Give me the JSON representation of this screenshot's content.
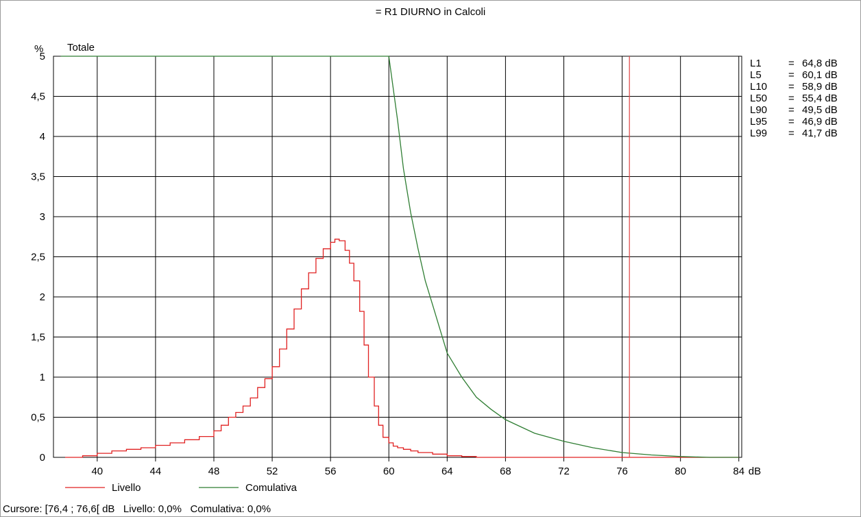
{
  "colors": {
    "livello": "#e02020",
    "comulativa": "#2e7d32",
    "cursor": "#e05050",
    "grid": "#000000",
    "cumulative_top": "#2e7d32"
  },
  "chart_data": {
    "type": "line",
    "title": "= R1 DIURNO in Calcoli",
    "ylabel": "%",
    "series_title": "Totale",
    "xunit": "dB",
    "xlim": [
      37,
      84.2
    ],
    "ylim": [
      0,
      5
    ],
    "x_ticks": [
      "40",
      "44",
      "48",
      "52",
      "56",
      "60",
      "64",
      "68",
      "72",
      "76",
      "80",
      "84"
    ],
    "y_ticks": [
      "0",
      "0,5",
      "1",
      "1,5",
      "2",
      "2,5",
      "3",
      "3,5",
      "4",
      "4,5",
      "5"
    ],
    "grid": true,
    "legend_position": "bottom-left",
    "cursor_x": 76.5,
    "series": [
      {
        "name": "Livello",
        "style": "step",
        "x": [
          37.8,
          39,
          40,
          41,
          42,
          43,
          44,
          45,
          46,
          47,
          48,
          48.5,
          49,
          49.5,
          50,
          50.5,
          51,
          51.5,
          52,
          52.5,
          53,
          53.5,
          54,
          54.5,
          55,
          55.5,
          56,
          56.3,
          56.6,
          57,
          57.3,
          57.6,
          58,
          58.3,
          58.6,
          59,
          59.3,
          59.6,
          60,
          60.3,
          60.6,
          61,
          61.5,
          62,
          63,
          64,
          65,
          66,
          68,
          70,
          72,
          74,
          76,
          80,
          84
        ],
        "y": [
          0.0,
          0.02,
          0.05,
          0.08,
          0.1,
          0.12,
          0.15,
          0.18,
          0.22,
          0.26,
          0.33,
          0.4,
          0.5,
          0.56,
          0.64,
          0.74,
          0.87,
          0.98,
          1.13,
          1.35,
          1.6,
          1.85,
          2.1,
          2.3,
          2.48,
          2.6,
          2.68,
          2.72,
          2.7,
          2.58,
          2.42,
          2.2,
          1.82,
          1.4,
          1.0,
          0.64,
          0.4,
          0.25,
          0.18,
          0.14,
          0.12,
          0.1,
          0.08,
          0.06,
          0.04,
          0.02,
          0.01,
          0.0,
          0.0,
          0.0,
          0.0,
          0.0,
          0.0,
          0.0,
          0.0
        ]
      },
      {
        "name": "Comulativa",
        "style": "line",
        "x": [
          37.5,
          60,
          60.3,
          60.6,
          61,
          61.5,
          62,
          62.5,
          63,
          64,
          65,
          66,
          67,
          68,
          70,
          72,
          74,
          76,
          78,
          80,
          82,
          84
        ],
        "y": [
          5.0,
          5.0,
          4.6,
          4.2,
          3.6,
          3.05,
          2.6,
          2.2,
          1.9,
          1.3,
          1.0,
          0.75,
          0.6,
          0.47,
          0.3,
          0.2,
          0.12,
          0.06,
          0.03,
          0.01,
          0.0,
          0.0
        ]
      }
    ],
    "percentiles": [
      {
        "label": "L1",
        "eq": "=",
        "value": "64,8 dB"
      },
      {
        "label": "L5",
        "eq": "=",
        "value": "60,1 dB"
      },
      {
        "label": "L10",
        "eq": "=",
        "value": "58,9 dB"
      },
      {
        "label": "L50",
        "eq": "=",
        "value": "55,4 dB"
      },
      {
        "label": "L90",
        "eq": "=",
        "value": "49,5 dB"
      },
      {
        "label": "L95",
        "eq": "=",
        "value": "46,9 dB"
      },
      {
        "label": "L99",
        "eq": "=",
        "value": "41,7 dB"
      }
    ],
    "cursor_readout": "Cursore: [76,4 ; 76,6[ dB   Livello: 0,0%   Comulativa: 0,0%"
  }
}
